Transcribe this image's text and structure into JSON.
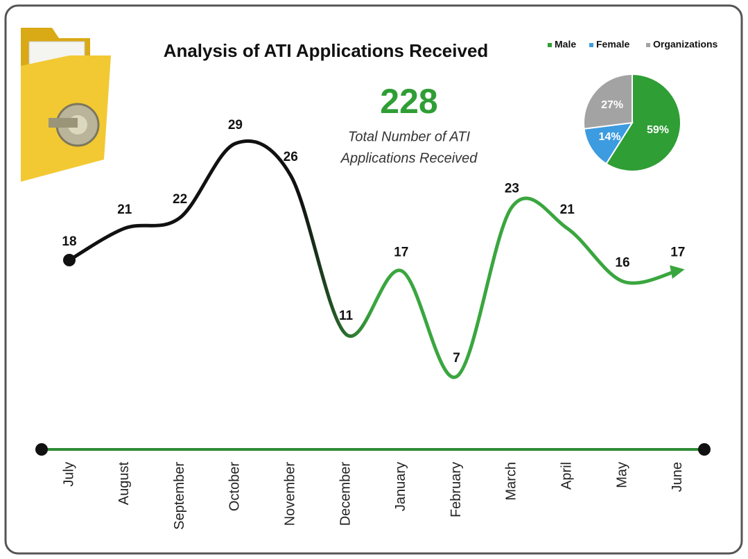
{
  "chart_data": [
    {
      "type": "line",
      "title": "Analysis of ATI Applications Received",
      "categories": [
        "July",
        "August",
        "September",
        "October",
        "November",
        "December",
        "January",
        "February",
        "March",
        "April",
        "May",
        "June"
      ],
      "values": [
        18,
        21,
        22,
        29,
        26,
        11,
        17,
        7,
        23,
        21,
        16,
        17
      ],
      "gradient_colors": [
        "#111111",
        "#3aa63f"
      ],
      "axis_color": "#2e8b35"
    },
    {
      "type": "pie",
      "series": [
        {
          "name": "Male",
          "color": "#2f9e35",
          "values": [
            59
          ],
          "value_labels": [
            "59%"
          ]
        },
        {
          "name": "Female",
          "color": "#3d9be0",
          "values": [
            14
          ],
          "value_labels": [
            "14%"
          ]
        },
        {
          "name": "Organizations",
          "color": "#a3a3a3",
          "values": [
            27
          ],
          "value_labels": [
            "27%"
          ]
        }
      ]
    }
  ],
  "summary": {
    "value": 228,
    "label_lines": [
      "Total Number of ATI",
      "Applications Received"
    ],
    "color": "#2f9e35"
  }
}
